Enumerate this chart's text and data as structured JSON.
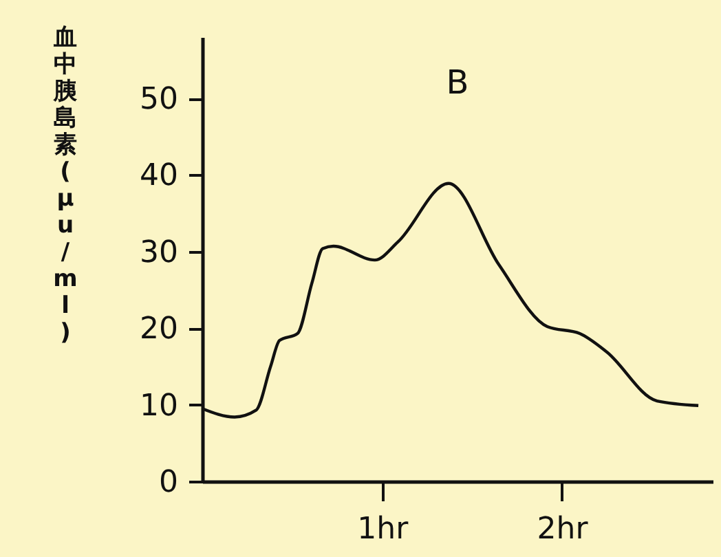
{
  "chart_data": {
    "type": "line",
    "title": "B",
    "ylabel": "血中胰島素(μu/ml)",
    "x": [
      0,
      0.18,
      0.3,
      0.38,
      0.43,
      0.53,
      0.61,
      0.67,
      0.73,
      0.96,
      1.09,
      1.37,
      1.65,
      1.92,
      2.1,
      2.25,
      2.53,
      2.76
    ],
    "series": [
      {
        "color": "#111111",
        "values": [
          9.5,
          8.4,
          9.3,
          15,
          18.4,
          19.3,
          25.9,
          30.4,
          30.7,
          28.9,
          31.3,
          38.9,
          28.3,
          20.2,
          19.3,
          16.9,
          10.5,
          9.9
        ]
      }
    ],
    "xlim": [
      0,
      2.84
    ],
    "xticks": [
      {
        "value": 1,
        "label": "1hr"
      },
      {
        "value": 2,
        "label": "2hr"
      }
    ],
    "ylim": [
      0,
      58
    ],
    "yticks": [
      0,
      10,
      20,
      30,
      40,
      50
    ],
    "grid": false,
    "marker": "none",
    "line_style": "solid"
  }
}
